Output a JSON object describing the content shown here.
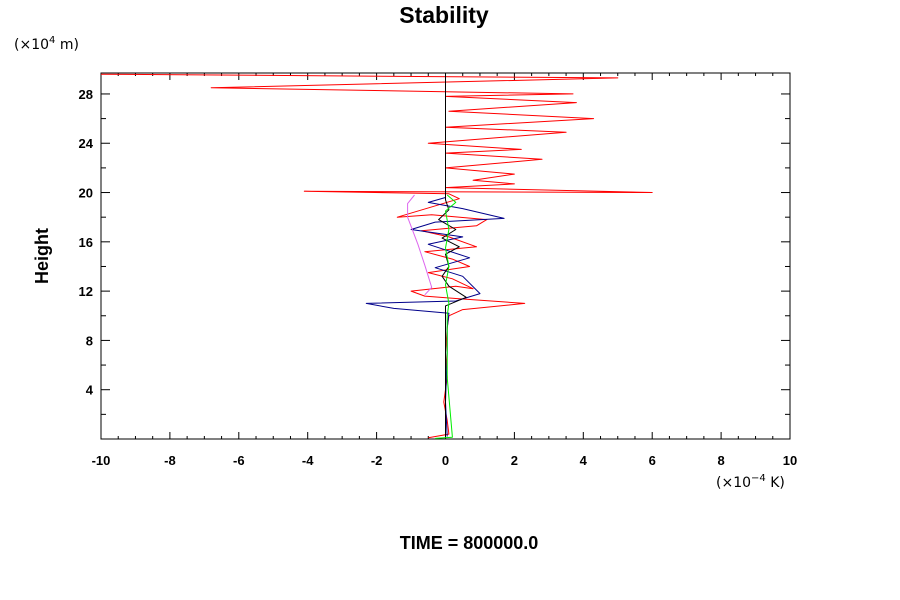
{
  "chart_data": {
    "type": "line",
    "title": "Stability",
    "ylabel": "Height",
    "y_unit_prefix": "(×10",
    "y_unit_exp": "4",
    "y_unit_suffix": " m)",
    "x_unit_prefix": "(×10",
    "x_unit_exp": "−4",
    "x_unit_suffix": " K)",
    "footer": "TIME = 800000.0",
    "xlim": [
      -10,
      10
    ],
    "ylim": [
      0,
      29.7
    ],
    "x_ticks": [
      -10,
      -8,
      -6,
      -4,
      -2,
      0,
      2,
      4,
      6,
      8,
      10
    ],
    "x_tick_labels": [
      "-10",
      "-8",
      "-6",
      "-4",
      "-2",
      "0",
      "2",
      "4",
      "6",
      "8",
      "10"
    ],
    "y_ticks": [
      4,
      8,
      12,
      16,
      20,
      24,
      28
    ],
    "y_tick_labels": [
      "4",
      "8",
      "12",
      "16",
      "20",
      "24",
      "28"
    ],
    "grid": false,
    "series": [
      {
        "color": "#ff0000",
        "points": [
          [
            -0.5,
            0.1
          ],
          [
            0.1,
            0.4
          ],
          [
            0.05,
            1.5
          ],
          [
            -0.05,
            3
          ],
          [
            0.05,
            5
          ],
          [
            0,
            7
          ],
          [
            0.05,
            9
          ],
          [
            0.1,
            10
          ],
          [
            0.5,
            10.5
          ],
          [
            2.3,
            11
          ],
          [
            0.3,
            11.4
          ],
          [
            -0.6,
            11.6
          ],
          [
            -1.0,
            12.0
          ],
          [
            0.3,
            12.4
          ],
          [
            0.8,
            12.2
          ],
          [
            0.2,
            13
          ],
          [
            -0.5,
            13.5
          ],
          [
            0.7,
            14
          ],
          [
            0.2,
            14.6
          ],
          [
            -0.6,
            15.2
          ],
          [
            0.9,
            15.6
          ],
          [
            0.1,
            16.4
          ],
          [
            -0.7,
            16.9
          ],
          [
            0.9,
            17.3
          ],
          [
            1.2,
            17.8
          ],
          [
            -0.4,
            18.2
          ],
          [
            -1.4,
            18.0
          ],
          [
            0.4,
            19.5
          ],
          [
            0.1,
            19.9
          ],
          [
            -4.1,
            20.1
          ],
          [
            6.0,
            20.0
          ],
          [
            0,
            20.4
          ],
          [
            2.0,
            20.7
          ],
          [
            0.8,
            21
          ],
          [
            2.0,
            21.5
          ],
          [
            0,
            22
          ],
          [
            2.8,
            22.7
          ],
          [
            0,
            23.2
          ],
          [
            2.2,
            23.5
          ],
          [
            -0.5,
            24
          ],
          [
            3.5,
            24.9
          ],
          [
            0,
            25.3
          ],
          [
            4.3,
            26
          ],
          [
            0.1,
            26.6
          ],
          [
            3.8,
            27.3
          ],
          [
            0,
            27.8
          ],
          [
            3.7,
            28.0
          ],
          [
            -6.8,
            28.5
          ],
          [
            5.0,
            29.3
          ],
          [
            -10,
            29.6
          ]
        ]
      },
      {
        "color": "#00008b",
        "points": [
          [
            0.05,
            0.2
          ],
          [
            0,
            3
          ],
          [
            0.05,
            7
          ],
          [
            0.05,
            9
          ],
          [
            0.1,
            10.2
          ],
          [
            -1.5,
            10.6
          ],
          [
            -2.3,
            11.0
          ],
          [
            0.3,
            11.2
          ],
          [
            1.0,
            11.8
          ],
          [
            0.5,
            13.2
          ],
          [
            -0.3,
            13.9
          ],
          [
            0.7,
            14.7
          ],
          [
            -0.5,
            15.8
          ],
          [
            0.5,
            16.4
          ],
          [
            -1.0,
            17.0
          ],
          [
            -0.3,
            17.6
          ],
          [
            1.7,
            17.9
          ],
          [
            0.5,
            18.7
          ],
          [
            -0.5,
            19.2
          ],
          [
            0.0,
            19.6
          ]
        ]
      },
      {
        "color": "#000000",
        "points": [
          [
            0,
            0.1
          ],
          [
            0,
            10.8
          ],
          [
            0.6,
            11.5
          ],
          [
            0.1,
            12.4
          ],
          [
            -0.1,
            13.2
          ],
          [
            0.1,
            14.0
          ],
          [
            0,
            15.0
          ],
          [
            0.4,
            15.6
          ],
          [
            -0.1,
            16.3
          ],
          [
            0.3,
            17.0
          ],
          [
            -0.2,
            17.8
          ],
          [
            0.1,
            18.6
          ],
          [
            0,
            19.4
          ],
          [
            0,
            29.7
          ]
        ]
      },
      {
        "color": "#dd66ee",
        "points": [
          [
            -0.6,
            11.7
          ],
          [
            -0.4,
            12.3
          ],
          [
            -0.6,
            14.1
          ],
          [
            -0.8,
            15.8
          ],
          [
            -1.1,
            18.0
          ],
          [
            -1.1,
            19.1
          ],
          [
            -0.9,
            19.8
          ]
        ]
      },
      {
        "color": "#00ee00",
        "points": [
          [
            -0.3,
            0.05
          ],
          [
            0.2,
            0.15
          ],
          [
            0.05,
            5
          ],
          [
            0.05,
            10
          ],
          [
            0.1,
            11
          ],
          [
            0.0,
            12.5
          ],
          [
            0.1,
            14
          ],
          [
            0,
            15.5
          ],
          [
            0.1,
            17
          ],
          [
            0,
            18.5
          ],
          [
            0.3,
            19.2
          ],
          [
            0.05,
            19.8
          ]
        ]
      }
    ]
  }
}
